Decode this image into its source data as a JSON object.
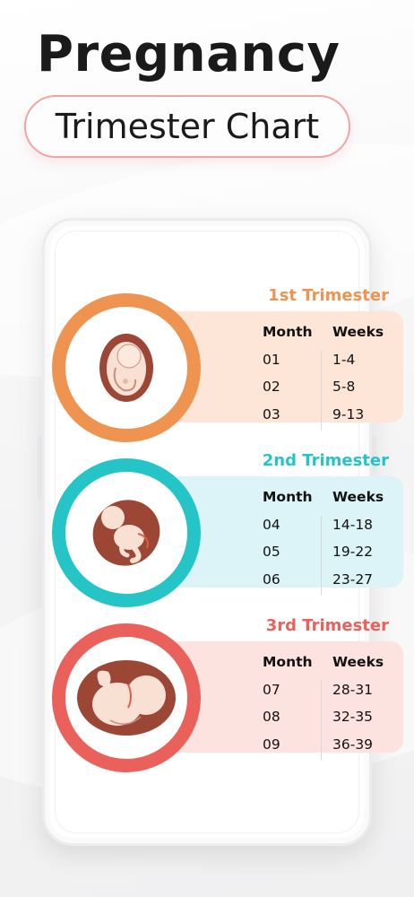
{
  "header": {
    "title": "Pregnancy",
    "subtitle": "Trimester Chart"
  },
  "colors": {
    "first": "#ee9450",
    "first_bg": "#fde6d8",
    "second": "#25c4c6",
    "second_bg": "#dcf3f7",
    "third": "#e9615a",
    "third_bg": "#fce3e0",
    "fetus_shell": "#9c4635",
    "fetus_body": "#f8e0d2"
  },
  "table_headers": {
    "month": "Month",
    "weeks": "Weeks"
  },
  "trimesters": [
    {
      "label": "1st Trimester",
      "icon": "fetus-early-icon",
      "rows": [
        {
          "month": "01",
          "weeks": "1-4"
        },
        {
          "month": "02",
          "weeks": "5-8"
        },
        {
          "month": "03",
          "weeks": "9-13"
        }
      ]
    },
    {
      "label": "2nd Trimester",
      "icon": "fetus-mid-icon",
      "rows": [
        {
          "month": "04",
          "weeks": "14-18"
        },
        {
          "month": "05",
          "weeks": "19-22"
        },
        {
          "month": "06",
          "weeks": "23-27"
        }
      ]
    },
    {
      "label": "3rd Trimester",
      "icon": "fetus-late-icon",
      "rows": [
        {
          "month": "07",
          "weeks": "28-31"
        },
        {
          "month": "08",
          "weeks": "32-35"
        },
        {
          "month": "09",
          "weeks": "36-39"
        }
      ]
    }
  ]
}
